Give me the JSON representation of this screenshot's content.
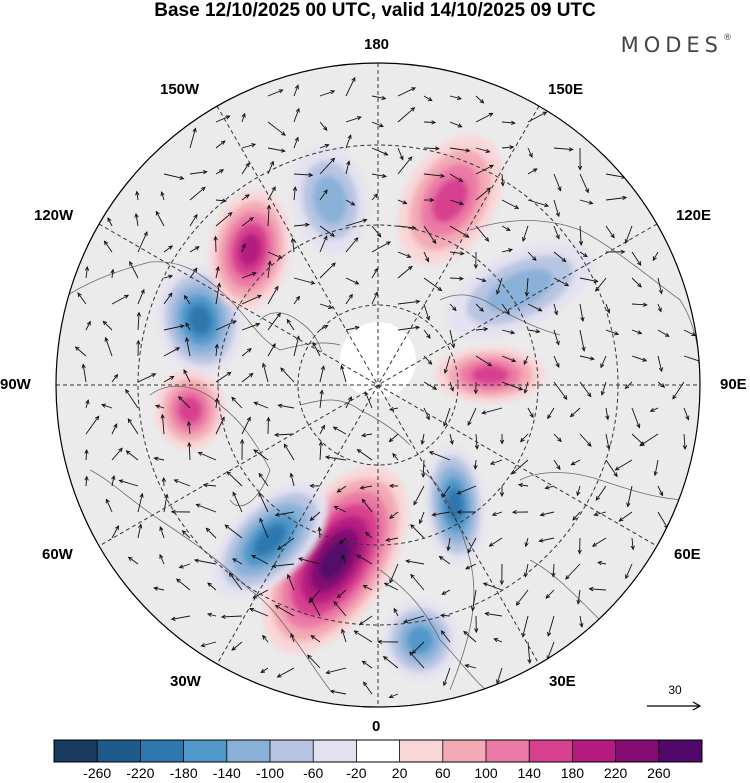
{
  "title": "Base 12/10/2025 00 UTC, valid 14/10/2025 09 UTC",
  "brand": "MODES",
  "brand_mark": "®",
  "longitude_labels": {
    "top": "180",
    "bottom": "0",
    "left": "90W",
    "right": "90E",
    "upper_left_1": "150W",
    "upper_left_2": "120W",
    "upper_right_1": "150E",
    "upper_right_2": "120E",
    "lower_left_1": "60W",
    "lower_left_2": "30W",
    "lower_right_1": "60E",
    "lower_right_2": "30E"
  },
  "vector_reference": "30",
  "colorbar": {
    "labels": [
      "-260",
      "-220",
      "-180",
      "-140",
      "-100",
      "-60",
      "-20",
      "20",
      "60",
      "100",
      "140",
      "180",
      "220",
      "260"
    ],
    "colors": [
      "#173a5e",
      "#1f5a8c",
      "#2e78b0",
      "#4f98c9",
      "#8ab1d8",
      "#b8c5e2",
      "#e4e2f0",
      "#ffffff",
      "#f9d6d8",
      "#f3aab5",
      "#ec7aa6",
      "#d8418f",
      "#b51a80",
      "#840c72",
      "#52086a"
    ]
  },
  "anomalies": [
    {
      "name": "anomaly-positive-atlantic",
      "value": 260
    },
    {
      "name": "anomaly-negative-labrador",
      "value": -200
    },
    {
      "name": "anomaly-negative-baffin",
      "value": -180
    },
    {
      "name": "anomaly-positive-alaska",
      "value": 180
    },
    {
      "name": "anomaly-negative-europe",
      "value": -180
    },
    {
      "name": "anomaly-negative-mediterranean",
      "value": -170
    },
    {
      "name": "anomaly-positive-siberia",
      "value": 140
    },
    {
      "name": "anomaly-positive-pacific",
      "value": 140
    },
    {
      "name": "anomaly-negative-pacific",
      "value": -120
    },
    {
      "name": "anomaly-positive-hudson",
      "value": 160
    },
    {
      "name": "anomaly-negative-east-siberia",
      "value": -100
    }
  ]
}
